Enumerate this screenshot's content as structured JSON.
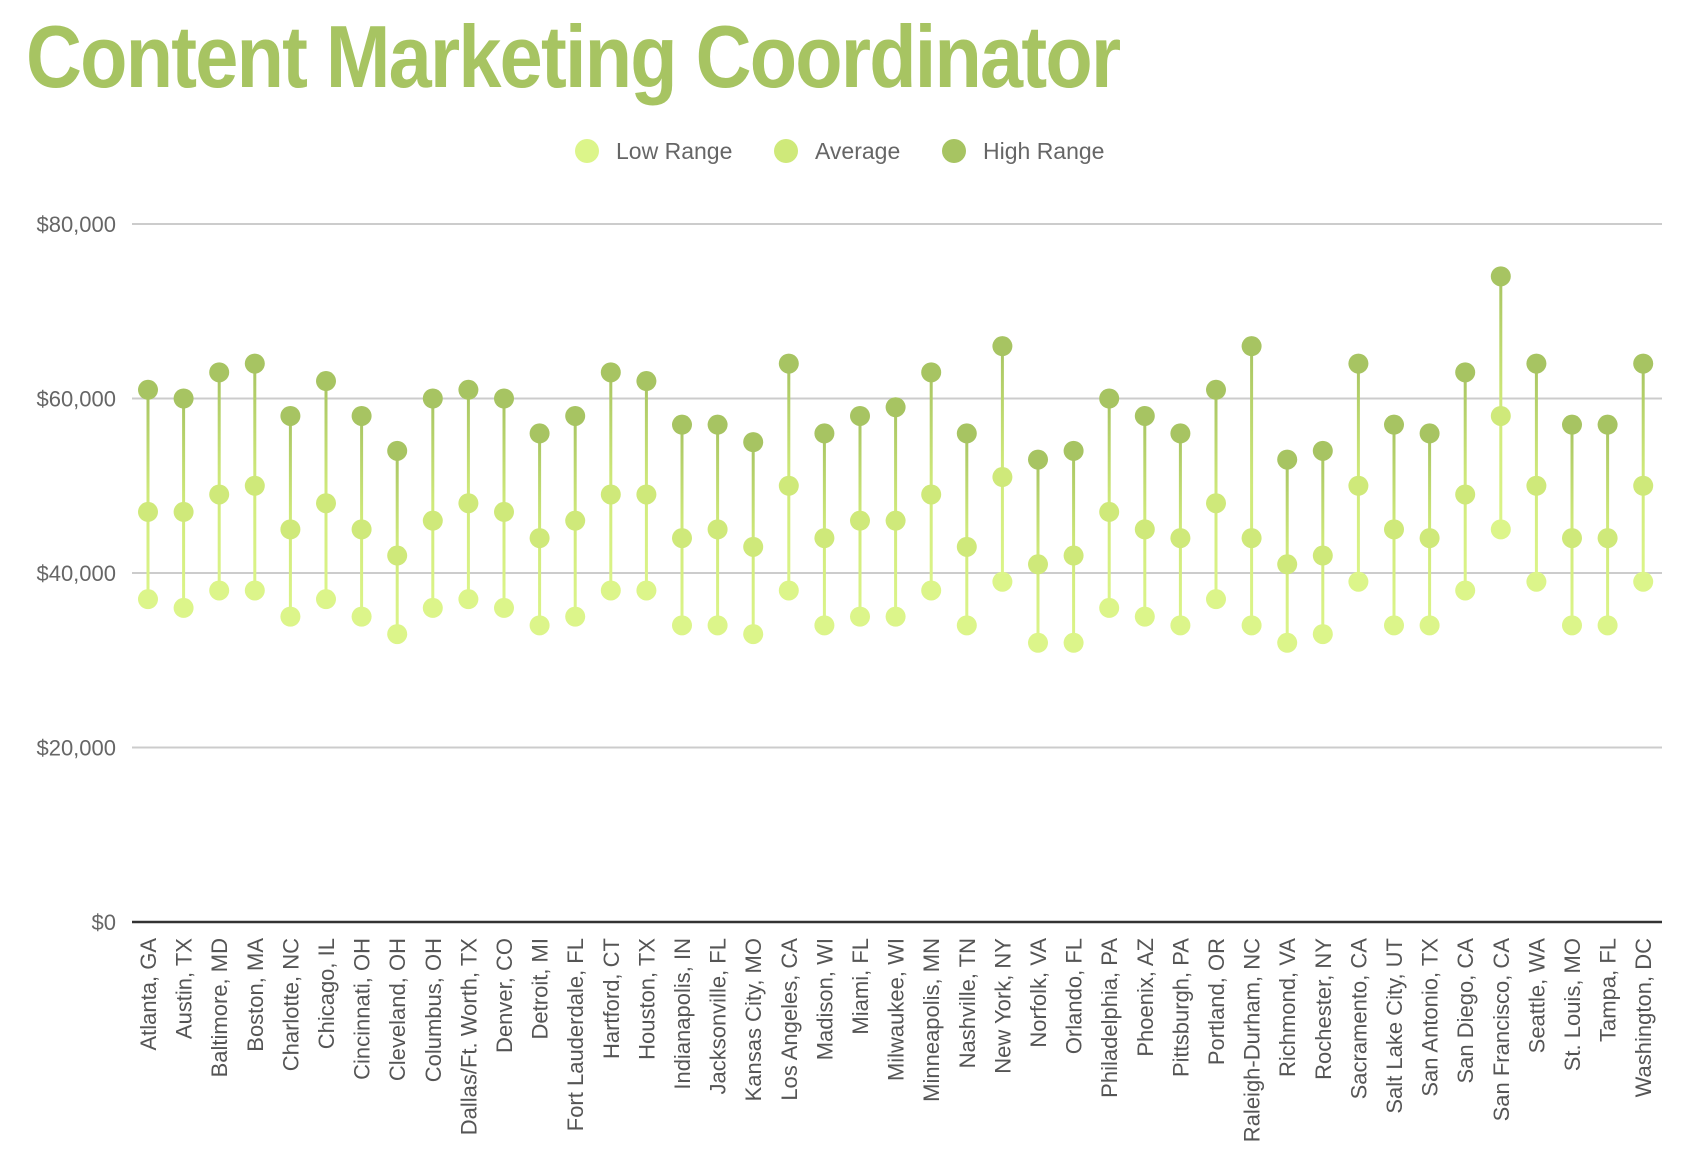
{
  "chart_data": {
    "type": "dot-range",
    "title": "Content Marketing Coordinator",
    "xlabel": "",
    "ylabel": "",
    "ylim": [
      0,
      80000
    ],
    "yticks": [
      0,
      20000,
      40000,
      60000,
      80000
    ],
    "ytick_labels": [
      "$0",
      "$20,000",
      "$40,000",
      "$60,000",
      "$80,000"
    ],
    "grid": true,
    "legend_position": "top-center",
    "colors": {
      "low": "#dcf58a",
      "avg": "#cfe97a",
      "high": "#a7c462",
      "grid": "#cccccc",
      "axis": "#333333",
      "title": "#a7c462"
    },
    "categories": [
      "Atlanta, GA",
      "Austin, TX",
      "Baltimore, MD",
      "Boston, MA",
      "Charlotte, NC",
      "Chicago, IL",
      "Cincinnati, OH",
      "Cleveland, OH",
      "Columbus, OH",
      "Dallas/Ft. Worth, TX",
      "Denver, CO",
      "Detroit, MI",
      "Fort Lauderdale, FL",
      "Hartford, CT",
      "Houston, TX",
      "Indianapolis, IN",
      "Jacksonville, FL",
      "Kansas City, MO",
      "Los Angeles, CA",
      "Madison, WI",
      "Miami, FL",
      "Milwaukee, WI",
      "Minneapolis, MN",
      "Nashville, TN",
      "New York, NY",
      "Norfolk, VA",
      "Orlando, FL",
      "Philadelphia, PA",
      "Phoenix, AZ",
      "Pittsburgh, PA",
      "Portland, OR",
      "Raleigh-Durham, NC",
      "Richmond, VA",
      "Rochester, NY",
      "Sacramento, CA",
      "Salt Lake City, UT",
      "San Antonio, TX",
      "San Diego, CA",
      "San Francisco, CA",
      "Seattle, WA",
      "St. Louis, MO",
      "Tampa, FL",
      "Washington, DC"
    ],
    "series": [
      {
        "name": "Low Range",
        "values": [
          37000,
          36000,
          38000,
          38000,
          35000,
          37000,
          35000,
          33000,
          36000,
          37000,
          36000,
          34000,
          35000,
          38000,
          38000,
          34000,
          34000,
          33000,
          38000,
          34000,
          35000,
          35000,
          38000,
          34000,
          39000,
          32000,
          32000,
          36000,
          35000,
          34000,
          37000,
          34000,
          32000,
          33000,
          39000,
          34000,
          34000,
          38000,
          45000,
          39000,
          34000,
          34000,
          39000
        ]
      },
      {
        "name": "Average",
        "values": [
          47000,
          47000,
          49000,
          50000,
          45000,
          48000,
          45000,
          42000,
          46000,
          48000,
          47000,
          44000,
          46000,
          49000,
          49000,
          44000,
          45000,
          43000,
          50000,
          44000,
          46000,
          46000,
          49000,
          43000,
          51000,
          41000,
          42000,
          47000,
          45000,
          44000,
          48000,
          44000,
          41000,
          42000,
          50000,
          45000,
          44000,
          49000,
          58000,
          50000,
          44000,
          44000,
          50000
        ]
      },
      {
        "name": "High Range",
        "values": [
          61000,
          60000,
          63000,
          64000,
          58000,
          62000,
          58000,
          54000,
          60000,
          61000,
          60000,
          56000,
          58000,
          63000,
          62000,
          57000,
          57000,
          55000,
          64000,
          56000,
          58000,
          59000,
          63000,
          56000,
          66000,
          53000,
          54000,
          60000,
          58000,
          56000,
          61000,
          66000,
          53000,
          54000,
          64000,
          57000,
          56000,
          63000,
          74000,
          64000,
          57000,
          57000,
          64000
        ]
      }
    ]
  }
}
